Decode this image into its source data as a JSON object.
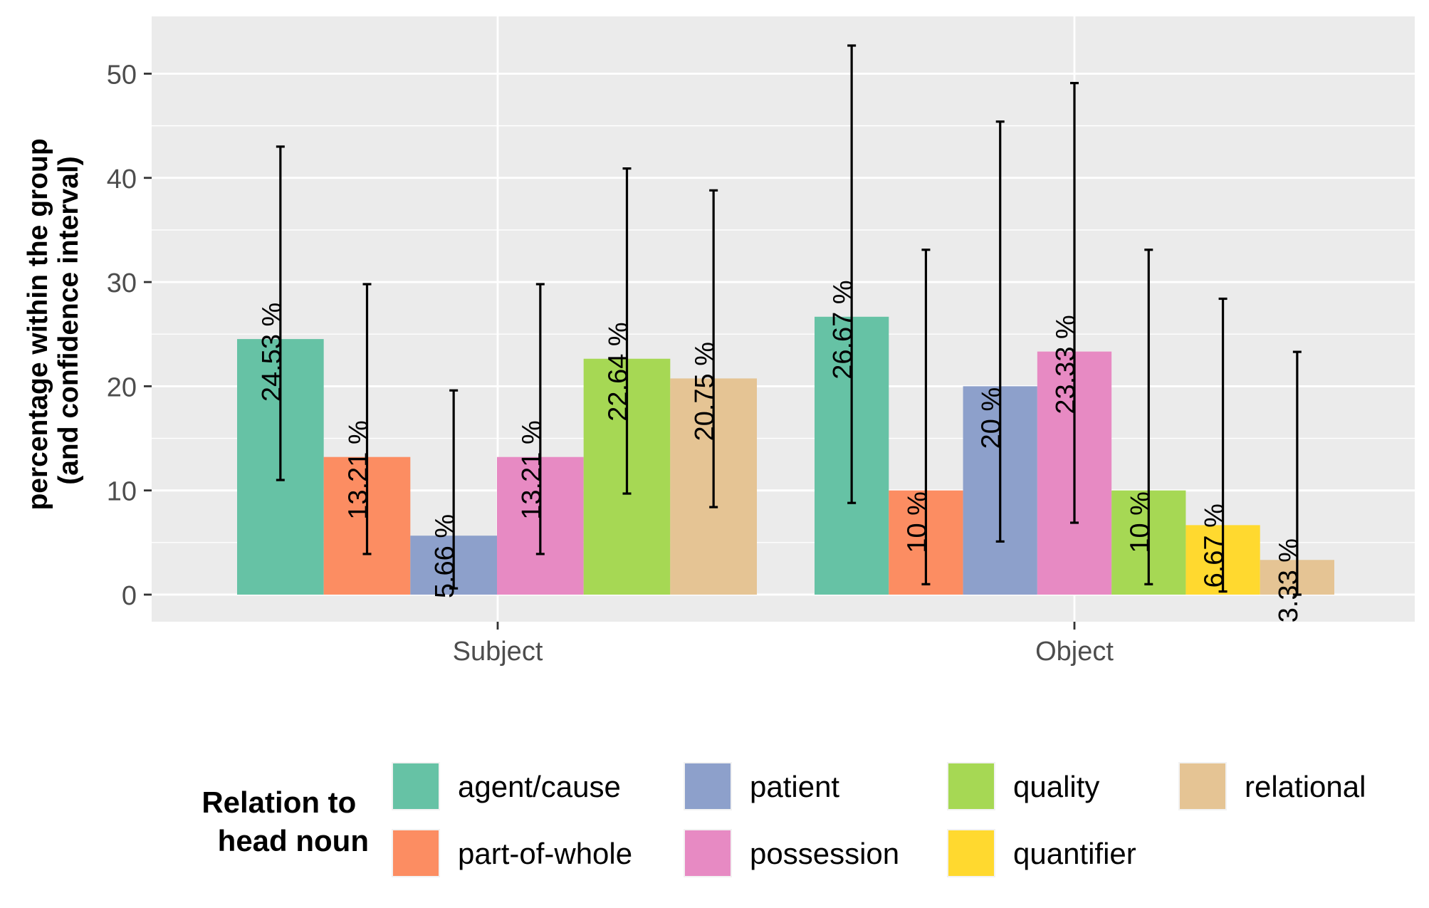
{
  "chart_data": {
    "type": "bar",
    "categories": [
      "Subject",
      "Object"
    ],
    "ylabel_lines": [
      "percentage within the group",
      "(and confidence interval)"
    ],
    "xlabel": "",
    "ylim": [
      -2.6,
      55.5
    ],
    "yticks": [
      0,
      10,
      20,
      30,
      40,
      50
    ],
    "grid": true,
    "legend_title_lines": [
      "Relation to",
      "head noun"
    ],
    "legend_position": "bottom",
    "legend": [
      {
        "name": "agent/cause",
        "color": "#66c2a5"
      },
      {
        "name": "part-of-whole",
        "color": "#fc8d62"
      },
      {
        "name": "patient",
        "color": "#8da0cb"
      },
      {
        "name": "possession",
        "color": "#e78ac3"
      },
      {
        "name": "quality",
        "color": "#a6d854"
      },
      {
        "name": "quantifier",
        "color": "#ffd92f"
      },
      {
        "name": "relational",
        "color": "#e5c494"
      }
    ],
    "groups": [
      {
        "category": "Subject",
        "bars": [
          {
            "series": "agent/cause",
            "value": 24.53,
            "label": "24.53 %",
            "ci": [
              11.0,
              43.0
            ]
          },
          {
            "series": "part-of-whole",
            "value": 13.21,
            "label": "13.21 %",
            "ci": [
              3.9,
              29.8
            ]
          },
          {
            "series": "patient",
            "value": 5.66,
            "label": "5.66 %",
            "ci": [
              0.6,
              19.6
            ]
          },
          {
            "series": "possession",
            "value": 13.21,
            "label": "13.21 %",
            "ci": [
              3.9,
              29.8
            ]
          },
          {
            "series": "quality",
            "value": 22.64,
            "label": "22.64 %",
            "ci": [
              9.7,
              40.9
            ]
          },
          {
            "series": "relational",
            "value": 20.75,
            "label": "20.75 %",
            "ci": [
              8.4,
              38.8
            ]
          }
        ]
      },
      {
        "category": "Object",
        "bars": [
          {
            "series": "agent/cause",
            "value": 26.67,
            "label": "26.67 %",
            "ci": [
              8.8,
              52.7
            ]
          },
          {
            "series": "part-of-whole",
            "value": 10,
            "label": "10 %",
            "ci": [
              1.0,
              33.1
            ]
          },
          {
            "series": "patient",
            "value": 20,
            "label": "20 %",
            "ci": [
              5.1,
              45.4
            ]
          },
          {
            "series": "possession",
            "value": 23.33,
            "label": "23.33 %",
            "ci": [
              6.9,
              49.1
            ]
          },
          {
            "series": "quality",
            "value": 10,
            "label": "10 %",
            "ci": [
              1.0,
              33.1
            ]
          },
          {
            "series": "quantifier",
            "value": 6.67,
            "label": "6.67 %",
            "ci": [
              0.3,
              28.4
            ]
          },
          {
            "series": "relational",
            "value": 3.33,
            "label": "3.33 %",
            "ci": [
              0.0,
              23.3
            ]
          }
        ]
      }
    ]
  }
}
